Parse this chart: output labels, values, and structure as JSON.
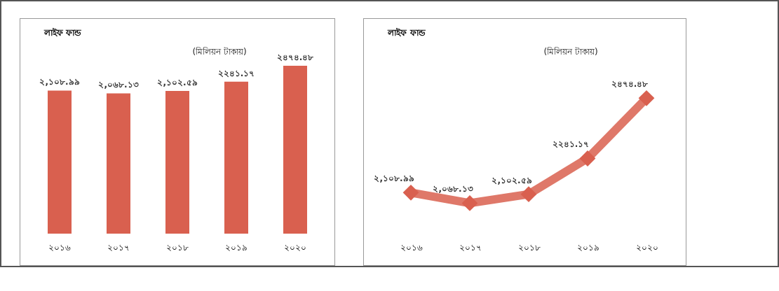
{
  "chart_data": [
    {
      "type": "bar",
      "title": "লাইফ ফান্ড",
      "annotations": [
        "(মিলিয়ন টাকায়)"
      ],
      "categories": [
        "২০১৬",
        "২০১৭",
        "২০১৮",
        "২০১৯",
        "২০২০"
      ],
      "values": [
        2108.99,
        2068.13,
        2102.59,
        2241.17,
        2474.48
      ],
      "value_labels": [
        "২,১০৮.৯৯",
        "২,০৬৮.১৩",
        "২,১০২.৫৯",
        "২২৪১.১৭",
        "২৪৭৪.৪৮"
      ],
      "color": "#d9604f",
      "grid": false
    },
    {
      "type": "line",
      "title": "লাইফ ফান্ড",
      "annotations": [
        "(মিলিয়ন টাকায়)"
      ],
      "categories": [
        "২০১৬",
        "২০১৭",
        "২০১৮",
        "২০১৯",
        "২০২০"
      ],
      "values": [
        2108.99,
        2068.13,
        2102.59,
        2241.17,
        2474.48
      ],
      "value_labels": [
        "২,১০৮.৯৯",
        "২,০৬৮.১৩",
        "২,১০২.৫৯",
        "২২৪১.১৭",
        "২৪৭৪.৪৮"
      ],
      "color": "#d9604f",
      "marker": "diamond",
      "grid": false
    }
  ]
}
